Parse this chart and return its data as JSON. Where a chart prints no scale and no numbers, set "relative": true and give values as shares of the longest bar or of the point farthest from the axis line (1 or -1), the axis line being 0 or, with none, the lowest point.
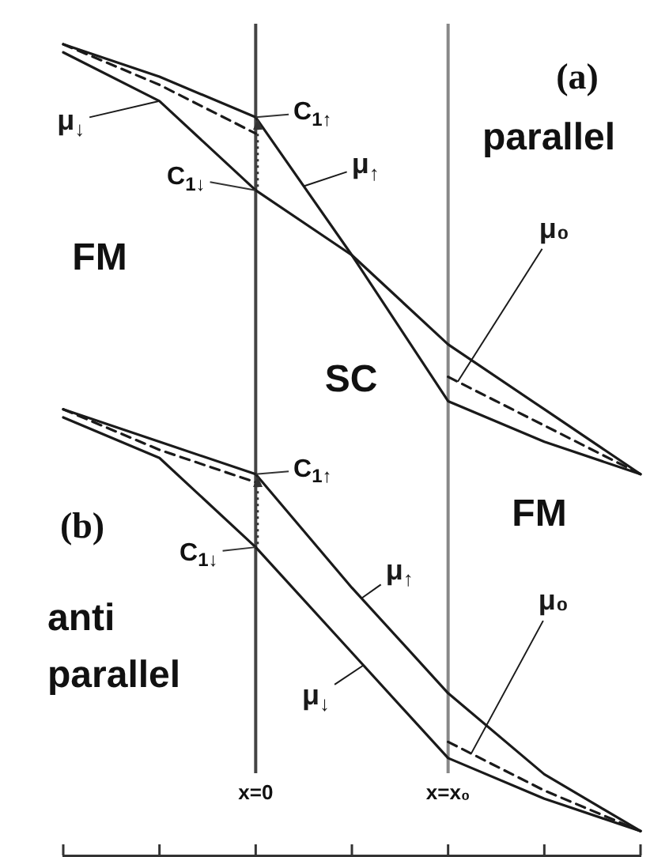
{
  "chart_data": {
    "type": "line",
    "relative": true,
    "marker": "none",
    "tick_labels": "x",
    "categories": [
      null,
      null,
      "x=0",
      null,
      "x=x₀",
      null,
      null
    ],
    "ref_lines": [
      {
        "axis": "x",
        "value": "x=0",
        "color": "#444444"
      },
      {
        "axis": "x",
        "value": "x=x₀",
        "color": "#888888"
      }
    ],
    "annotations": [
      "(a)",
      "parallel",
      "FM",
      "SC",
      "(b)",
      "anti parallel",
      "FM",
      {
        "text": "C$_{1↑}$",
        "x": "x=0",
        "y": 0.91
      },
      {
        "text": "C$_{1↓}$",
        "x": "x=0",
        "y": 0.82
      },
      {
        "text": "C$_{1↑}$",
        "x": "x=0",
        "y": 0.47
      },
      {
        "text": "C$_{1↓}$",
        "x": "x=0",
        "y": 0.38
      }
    ],
    "series": [
      {
        "name": "μ$_{↑}$",
        "color": "#1a1a1a",
        "values": [
          1.0,
          0.96,
          0.91,
          0.74,
          0.56,
          0.51,
          0.47
        ]
      },
      {
        "name": "μ$_{↓}$",
        "color": "#1a1a1a",
        "values": [
          0.99,
          0.93,
          0.82,
          0.74,
          0.63,
          0.55,
          0.47
        ]
      },
      {
        "name": "μ₀",
        "color": "#1a1a1a",
        "line_style": "dashed",
        "values": [
          1.0,
          0.95,
          0.89,
          null,
          0.59,
          0.53,
          0.47
        ]
      },
      {
        "name": "μ$_{↑}$",
        "color": "#1a1a1a",
        "values": [
          0.55,
          0.51,
          0.47,
          0.33,
          0.2,
          0.1,
          0.03
        ]
      },
      {
        "name": "μ$_{↓}$",
        "color": "#1a1a1a",
        "values": [
          0.54,
          0.49,
          0.38,
          0.25,
          0.12,
          0.07,
          0.03
        ]
      },
      {
        "name": "μ₀",
        "color": "#1a1a1a",
        "line_style": "dashed",
        "values": [
          0.55,
          0.5,
          0.46,
          null,
          0.14,
          0.08,
          0.03
        ]
      }
    ]
  }
}
